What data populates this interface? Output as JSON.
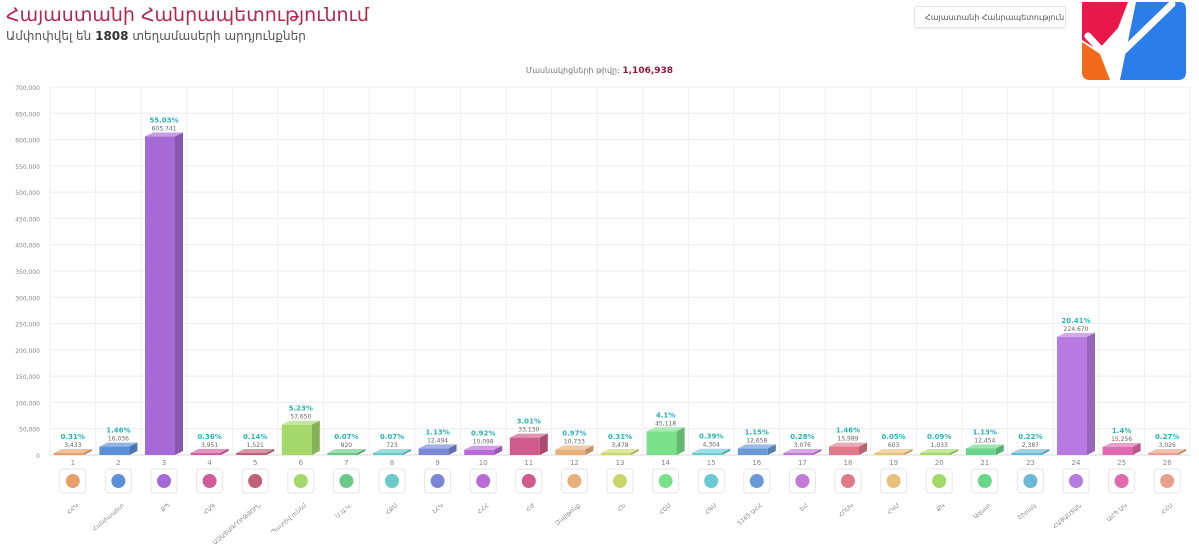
{
  "header": {
    "title": "Հայաստանի Հանրապետությունում",
    "subtitle_prefix": "Ամփոփվել են",
    "subtitle_count": "1808",
    "subtitle_suffix": "տեղամասերի արդյունքներ",
    "dropdown_label": "Հայաստանի Հանրապետություն"
  },
  "summary": {
    "total_label": "Մասնակիցների թիվը:",
    "total_value": "1,106,938"
  },
  "logo": {
    "icon": "checkmark-ballot-logo",
    "colors": [
      "#e8194a",
      "#f26b1d",
      "#2b7de9"
    ]
  },
  "chart_data": {
    "type": "bar",
    "ylim": [
      0,
      700000
    ],
    "yticks": [
      "0",
      "50,000",
      "100,000",
      "150,000",
      "200,000",
      "250,000",
      "300,000",
      "350,000",
      "400,000",
      "450,000",
      "500,000",
      "550,000",
      "600,000",
      "650,000",
      "700,000"
    ],
    "grid": true,
    "bars": [
      {
        "num": "1",
        "party": "ՀՀԿ",
        "value": 3433,
        "value_label": "3,433",
        "pct": "0.31%",
        "color": "#e8a06a"
      },
      {
        "num": "2",
        "party": "Հանրապետ",
        "value": 16036,
        "value_label": "16,036",
        "pct": "1.46%",
        "color": "#5b8fd6"
      },
      {
        "num": "3",
        "party": "ՔՊ",
        "value": 605741,
        "value_label": "605,741",
        "pct": "55.03%",
        "color": "#a56ad6"
      },
      {
        "num": "4",
        "party": "ՀԱԳ",
        "value": 3951,
        "value_label": "3,951",
        "pct": "0.36%",
        "color": "#d05a9a"
      },
      {
        "num": "5",
        "party": "ԱԶԱՏԱԳՐՈՒԹՅՈՒՆ",
        "value": 1521,
        "value_label": "1,521",
        "pct": "0.14%",
        "color": "#c0607a"
      },
      {
        "num": "6",
        "party": "Պատիվ ունեմ",
        "value": 57650,
        "value_label": "57,650",
        "pct": "5.23%",
        "color": "#a4d86a"
      },
      {
        "num": "7",
        "party": "Մ.Ա.Կ.",
        "value": 820,
        "value_label": "820",
        "pct": "0.07%",
        "color": "#6ac98a"
      },
      {
        "num": "8",
        "party": "ՀՔՄ",
        "value": 723,
        "value_label": "723",
        "pct": "0.07%",
        "color": "#6ac9c9"
      },
      {
        "num": "9",
        "party": "ԼՀԿ",
        "value": 12494,
        "value_label": "12,494",
        "pct": "1.13%",
        "color": "#7a86d6"
      },
      {
        "num": "10",
        "party": "ՀՀՀ",
        "value": 10098,
        "value_label": "10,098",
        "pct": "0.92%",
        "color": "#b86ad6"
      },
      {
        "num": "11",
        "party": "ՀԺ",
        "value": 33130,
        "value_label": "33,130",
        "pct": "3.01%",
        "color": "#d05a8a"
      },
      {
        "num": "12",
        "party": "Զարթոնք",
        "value": 10733,
        "value_label": "10,733",
        "pct": "0.97%",
        "color": "#e8b07a"
      },
      {
        "num": "13",
        "party": "ՀԵ",
        "value": 3478,
        "value_label": "3,478",
        "pct": "0.31%",
        "color": "#c9d86a"
      },
      {
        "num": "14",
        "party": "ՀՇՄ",
        "value": 45118,
        "value_label": "45,118",
        "pct": "4.1%",
        "color": "#7ae08a"
      },
      {
        "num": "15",
        "party": "ՀԳՄ",
        "value": 4304,
        "value_label": "4,304",
        "pct": "0.39%",
        "color": "#6ac9d6"
      },
      {
        "num": "16",
        "party": "5165 ԱՀՀ",
        "value": 12658,
        "value_label": "12,658",
        "pct": "1.15%",
        "color": "#6a9ad6"
      },
      {
        "num": "17",
        "party": "ԵՀ",
        "value": 3076,
        "value_label": "3,076",
        "pct": "0.28%",
        "color": "#c07ad6"
      },
      {
        "num": "18",
        "party": "ՀՈՍԿ",
        "value": 15989,
        "value_label": "15,989",
        "pct": "1.46%",
        "color": "#e07a8a"
      },
      {
        "num": "19",
        "party": "ՀԿՄ",
        "value": 603,
        "value_label": "603",
        "pct": "0.05%",
        "color": "#e8c07a"
      },
      {
        "num": "20",
        "party": "ՔԿ",
        "value": 1033,
        "value_label": "1,033",
        "pct": "0.09%",
        "color": "#a4d86a"
      },
      {
        "num": "21",
        "party": "Ազատ",
        "value": 12454,
        "value_label": "12,454",
        "pct": "1.13%",
        "color": "#6ad68a"
      },
      {
        "num": "23",
        "party": "Շիրակ",
        "value": 2387,
        "value_label": "2,387",
        "pct": "0.22%",
        "color": "#6ab8d6"
      },
      {
        "num": "24",
        "party": "ՀԱՅԱՍՏԱՆ",
        "value": 224670,
        "value_label": "224,670",
        "pct": "20.41%",
        "color": "#b77ae0"
      },
      {
        "num": "25",
        "party": "ԱՀՊ ԱԿ",
        "value": 15256,
        "value_label": "15,256",
        "pct": "1.4%",
        "color": "#e06ab0"
      },
      {
        "num": "26",
        "party": "ՀՀՍ",
        "value": 3026,
        "value_label": "3,026",
        "pct": "0.27%",
        "color": "#e8a08a"
      }
    ]
  }
}
